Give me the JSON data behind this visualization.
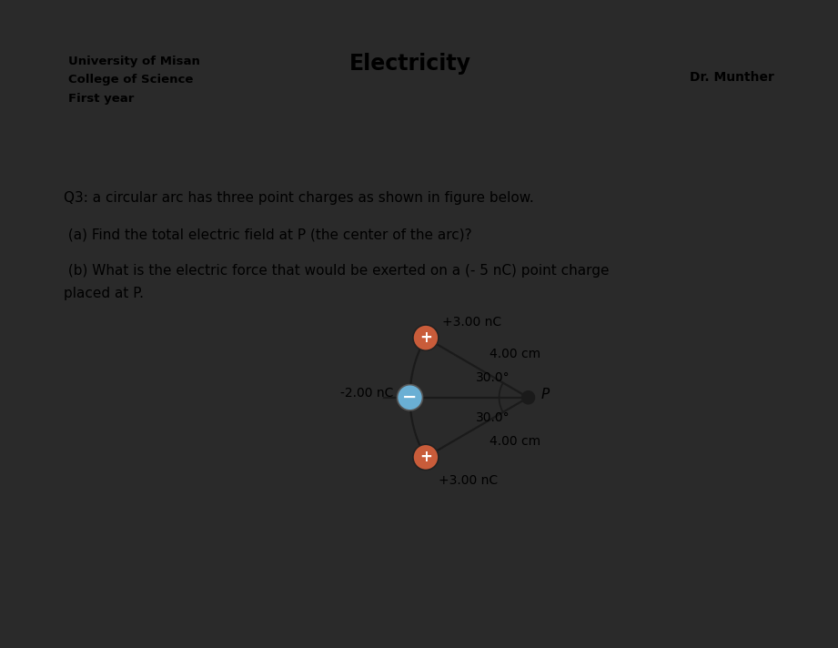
{
  "title": "Electricity",
  "uni_line1": "University of Misan",
  "uni_line2": "College of Science",
  "uni_line3": "First year",
  "doctor": "Dr. Munther",
  "q3_text": "Q3: a circular arc has three point charges as shown in figure below.",
  "qa_text": " (a) Find the total electric field at P (the center of the arc)?",
  "qb_text": " (b) What is the electric force that would be exerted on a (- 5 nC) point charge\nplaced at P.",
  "bg_color": "#ffffff",
  "outer_bg": "#2a2a2a",
  "charge_pos_color": "#c95c3a",
  "charge_neg_color": "#6aafd4",
  "charge_p_color": "#1a1a1a",
  "line_color": "#1a1a1a",
  "label_top": "+3.00 nC",
  "label_mid": "-2.00 nC",
  "label_bot": "+3.00 nC",
  "label_dist_top": "4.00 cm",
  "label_dist_bot": "4.00 cm",
  "label_angle_top": "30.0°",
  "label_angle_bot": "30.0°",
  "label_p": "P",
  "fig_width": 9.21,
  "fig_height": 7.12
}
